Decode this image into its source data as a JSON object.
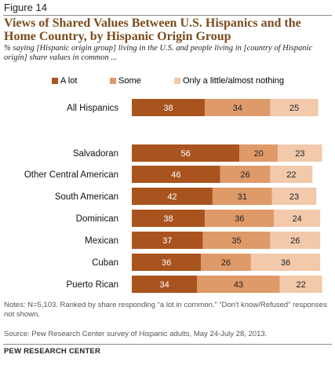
{
  "figure_label": "Figure 14",
  "title": "Views of Shared Values Between U.S. Hispanics and the Home Country, by Hispanic Origin Group",
  "subtitle": "% saying [Hispanic origin group] living in the U.S. and people living in [country of Hispanic origin] share values in common ...",
  "notes": "Notes: N=5,103. Ranked by share responding “a lot in common.” “Don't know/Refused” responses not shown.",
  "source": "Source: Pew Research Center survey of Hispanic adults, May 24-July 28, 2013.",
  "credit": "PEW RESEARCH CENTER",
  "colors": {
    "a_lot": "#a9541f",
    "some": "#df9a6a",
    "only_a_little": "#f2c9aa"
  },
  "chart_data": {
    "type": "bar",
    "orientation": "horizontal",
    "stacked": true,
    "categories": [
      "All Hispanics",
      "Salvadoran",
      "Other Central American",
      "South American",
      "Dominican",
      "Mexican",
      "Cuban",
      "Puerto Rican"
    ],
    "series": [
      {
        "name": "A lot",
        "values": [
          38,
          56,
          46,
          42,
          38,
          37,
          36,
          34
        ]
      },
      {
        "name": "Some",
        "values": [
          34,
          20,
          26,
          31,
          36,
          35,
          26,
          43
        ]
      },
      {
        "name": "Only a little/almost nothing",
        "values": [
          25,
          23,
          22,
          23,
          24,
          26,
          36,
          22
        ]
      }
    ],
    "xlim": [
      0,
      100
    ],
    "legend_position": "top",
    "data_labels": true,
    "grid": false
  }
}
